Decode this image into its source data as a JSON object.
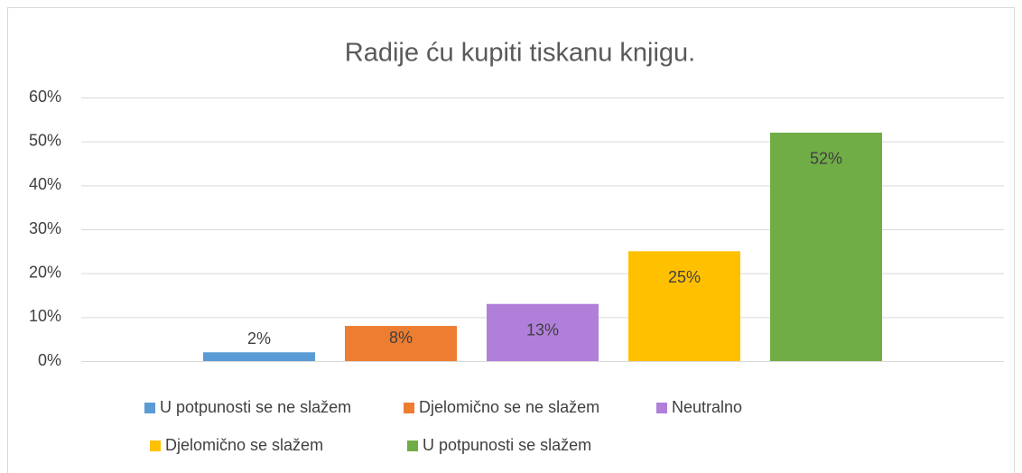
{
  "chart_data": {
    "type": "bar",
    "title": "Radije ću kupiti tiskanu knjigu.",
    "categories": [
      null
    ],
    "series": [
      {
        "name": "U potpunosti se ne slažem",
        "color": "#5b9bd5",
        "values": [
          2
        ],
        "value_labels": [
          "2%"
        ]
      },
      {
        "name": "Djelomično se ne slažem",
        "color": "#ed7d31",
        "values": [
          8
        ],
        "value_labels": [
          "8%"
        ]
      },
      {
        "name": "Neutralno",
        "color": "#b07fda",
        "values": [
          13
        ],
        "value_labels": [
          "13%"
        ]
      },
      {
        "name": "Djelomično se slažem",
        "color": "#ffc000",
        "values": [
          25
        ],
        "value_labels": [
          "25%"
        ]
      },
      {
        "name": "U potpunosti se slažem",
        "color": "#70ad47",
        "values": [
          52
        ],
        "value_labels": [
          "52%"
        ]
      }
    ],
    "ylim": [
      0,
      60
    ],
    "yticks": [
      {
        "value": 0,
        "label": "0%"
      },
      {
        "value": 10,
        "label": "10%"
      },
      {
        "value": 20,
        "label": "20%"
      },
      {
        "value": 30,
        "label": "30%"
      },
      {
        "value": 40,
        "label": "40%"
      },
      {
        "value": 50,
        "label": "50%"
      },
      {
        "value": 60,
        "label": "60%"
      }
    ],
    "grid": true,
    "legend": "bottom"
  }
}
